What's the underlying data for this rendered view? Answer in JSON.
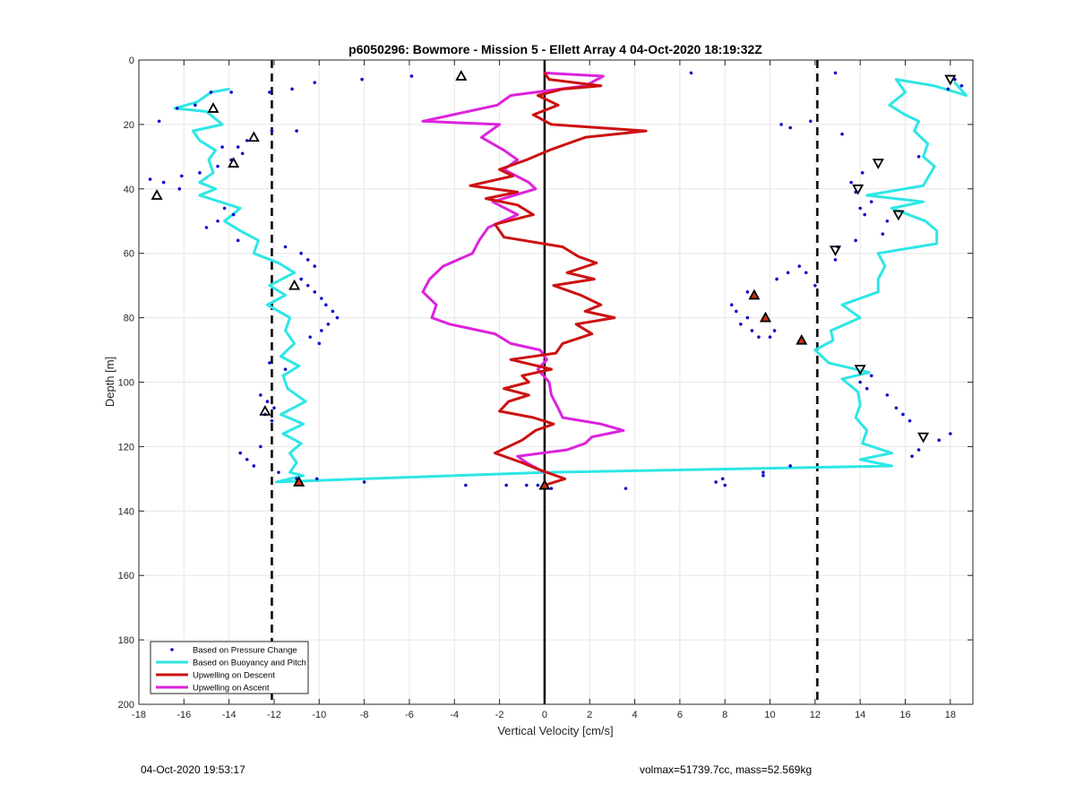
{
  "footer": {
    "left": "04-Oct-2020 19:53:17",
    "right": "volmax=51739.7cc, mass=52.569kg"
  },
  "chart_data": {
    "type": "line",
    "title": "p6050296: Bowmore - Mission 5 - Ellett Array 4 04-Oct-2020 18:19:32Z",
    "xlabel": "Vertical Velocity [cm/s]",
    "ylabel": "Depth [m]",
    "xlim": [
      -18,
      19
    ],
    "ylim": [
      0,
      200
    ],
    "y_reversed": true,
    "grid": true,
    "legend_position": "bottom-left",
    "xticks": [
      "-18",
      "-16",
      "-14",
      "-12",
      "-10",
      "-8",
      "-6",
      "-4",
      "-2",
      "0",
      "2",
      "4",
      "6",
      "8",
      "10",
      "12",
      "14",
      "16",
      "18"
    ],
    "yticks": [
      "0",
      "20",
      "40",
      "60",
      "80",
      "100",
      "120",
      "140",
      "160",
      "180",
      "200"
    ],
    "reference_lines": [
      {
        "x": -12.1,
        "style": "dashed",
        "color": "#000000"
      },
      {
        "x": 12.1,
        "style": "dashed",
        "color": "#000000"
      },
      {
        "x": 0,
        "style": "solid",
        "color": "#000000"
      }
    ],
    "series": [
      {
        "name": "Based on Pressure Change",
        "kind": "points",
        "color": "#1010c8",
        "points": [
          [
            -14.8,
            10
          ],
          [
            -15.5,
            14
          ],
          [
            -16.3,
            15
          ],
          [
            -17.1,
            19
          ],
          [
            -13.9,
            10
          ],
          [
            -12.2,
            10
          ],
          [
            -11.2,
            9
          ],
          [
            -10.2,
            7
          ],
          [
            -8.1,
            6
          ],
          [
            -5.9,
            5
          ],
          [
            6.5,
            4
          ],
          [
            12.9,
            4
          ],
          [
            -13.6,
            27
          ],
          [
            -13.4,
            29
          ],
          [
            -13.9,
            31
          ],
          [
            -14.5,
            33
          ],
          [
            -15.3,
            35
          ],
          [
            -16.1,
            36
          ],
          [
            -16.9,
            38
          ],
          [
            -17.5,
            37
          ],
          [
            -16.2,
            40
          ],
          [
            -14.3,
            27
          ],
          [
            -13.2,
            25
          ],
          [
            -12.1,
            22
          ],
          [
            -11.0,
            22
          ],
          [
            -14.2,
            46
          ],
          [
            -13.8,
            48
          ],
          [
            -14.5,
            50
          ],
          [
            -15.0,
            52
          ],
          [
            -13.6,
            56
          ],
          [
            -11.5,
            58
          ],
          [
            -10.8,
            60
          ],
          [
            -10.5,
            62
          ],
          [
            -10.2,
            64
          ],
          [
            -10.8,
            68
          ],
          [
            -10.5,
            70
          ],
          [
            -10.2,
            72
          ],
          [
            -9.9,
            74
          ],
          [
            -9.7,
            76
          ],
          [
            -9.4,
            78
          ],
          [
            -9.2,
            80
          ],
          [
            -9.6,
            82
          ],
          [
            -9.9,
            84
          ],
          [
            -10.4,
            86
          ],
          [
            -10.0,
            88
          ],
          [
            -12.2,
            94
          ],
          [
            -11.5,
            96
          ],
          [
            -12.6,
            104
          ],
          [
            -12.3,
            106
          ],
          [
            -12.0,
            108
          ],
          [
            -12.4,
            110
          ],
          [
            -12.1,
            112
          ],
          [
            -12.6,
            120
          ],
          [
            -13.5,
            122
          ],
          [
            -13.2,
            124
          ],
          [
            -12.9,
            126
          ],
          [
            -11.8,
            128
          ],
          [
            -11.0,
            130
          ],
          [
            -10.1,
            130
          ],
          [
            -8.0,
            131
          ],
          [
            -3.5,
            132
          ],
          [
            -1.7,
            132
          ],
          [
            -0.8,
            132
          ],
          [
            -0.3,
            132
          ],
          [
            0.3,
            133
          ],
          [
            3.6,
            133
          ],
          [
            7.6,
            131
          ],
          [
            7.9,
            130
          ],
          [
            8.0,
            132
          ],
          [
            9.7,
            128
          ],
          [
            9.7,
            129
          ],
          [
            10.9,
            126
          ],
          [
            10.5,
            20
          ],
          [
            10.9,
            21
          ],
          [
            11.8,
            19
          ],
          [
            13.2,
            23
          ],
          [
            16.6,
            30
          ],
          [
            14.1,
            35
          ],
          [
            13.6,
            38
          ],
          [
            13.8,
            41
          ],
          [
            14.5,
            44
          ],
          [
            14.0,
            46
          ],
          [
            14.2,
            48
          ],
          [
            15.2,
            50
          ],
          [
            15.0,
            54
          ],
          [
            13.8,
            56
          ],
          [
            13.0,
            58
          ],
          [
            12.9,
            62
          ],
          [
            8.3,
            76
          ],
          [
            9.0,
            72
          ],
          [
            10.3,
            68
          ],
          [
            10.8,
            66
          ],
          [
            11.3,
            64
          ],
          [
            11.6,
            66
          ],
          [
            12.0,
            70
          ],
          [
            8.5,
            78
          ],
          [
            9.0,
            80
          ],
          [
            8.7,
            82
          ],
          [
            9.2,
            84
          ],
          [
            9.5,
            86
          ],
          [
            10.0,
            86
          ],
          [
            10.2,
            84
          ],
          [
            14.5,
            98
          ],
          [
            14.0,
            100
          ],
          [
            14.3,
            102
          ],
          [
            15.2,
            104
          ],
          [
            15.6,
            108
          ],
          [
            15.9,
            110
          ],
          [
            16.2,
            112
          ],
          [
            18.0,
            116
          ],
          [
            17.5,
            118
          ],
          [
            16.6,
            121
          ],
          [
            16.3,
            123
          ],
          [
            18.2,
            6
          ],
          [
            18.5,
            8
          ],
          [
            17.9,
            9
          ]
        ]
      },
      {
        "name": "Based on Buoyancy and Pitch",
        "kind": "line",
        "color": "#2ee6e6",
        "points": [
          [
            -14.0,
            9
          ],
          [
            -14.8,
            10
          ],
          [
            -15.4,
            13
          ],
          [
            -16.4,
            15
          ],
          [
            -15.0,
            16
          ],
          [
            -14.3,
            20
          ],
          [
            -15.6,
            22
          ],
          [
            -15.3,
            25
          ],
          [
            -14.6,
            28
          ],
          [
            -14.9,
            31
          ],
          [
            -14.7,
            35
          ],
          [
            -15.3,
            38
          ],
          [
            -14.6,
            40
          ],
          [
            -15.3,
            42
          ],
          [
            -13.5,
            46
          ],
          [
            -14.2,
            50
          ],
          [
            -13.5,
            53
          ],
          [
            -12.7,
            56
          ],
          [
            -12.9,
            60
          ],
          [
            -11.8,
            63
          ],
          [
            -11.1,
            66
          ],
          [
            -12.2,
            70
          ],
          [
            -11.5,
            73
          ],
          [
            -12.3,
            76
          ],
          [
            -11.3,
            80
          ],
          [
            -11.5,
            84
          ],
          [
            -11.1,
            88
          ],
          [
            -11.7,
            92
          ],
          [
            -10.9,
            95
          ],
          [
            -11.6,
            98
          ],
          [
            -11.4,
            102
          ],
          [
            -10.6,
            106
          ],
          [
            -11.7,
            110
          ],
          [
            -10.7,
            113
          ],
          [
            -11.6,
            116
          ],
          [
            -10.8,
            119
          ],
          [
            -11.3,
            122
          ],
          [
            -11.0,
            125
          ],
          [
            -11.3,
            128
          ],
          [
            -10.7,
            129
          ],
          [
            -11.9,
            131
          ],
          [
            0,
            128
          ],
          [
            15.4,
            126
          ],
          [
            14.0,
            124
          ],
          [
            15.4,
            122
          ],
          [
            14.1,
            119
          ],
          [
            14.3,
            115
          ],
          [
            13.8,
            111
          ],
          [
            14.0,
            107
          ],
          [
            13.9,
            103
          ],
          [
            13.2,
            99
          ],
          [
            14.4,
            97
          ],
          [
            12.6,
            94
          ],
          [
            12.0,
            90
          ],
          [
            12.8,
            87
          ],
          [
            12.7,
            84
          ],
          [
            14.0,
            80
          ],
          [
            13.2,
            76
          ],
          [
            14.8,
            72
          ],
          [
            14.8,
            68
          ],
          [
            15.1,
            64
          ],
          [
            14.8,
            60
          ],
          [
            17.4,
            57
          ],
          [
            17.4,
            53
          ],
          [
            16.9,
            50
          ],
          [
            15.4,
            46
          ],
          [
            16.8,
            44
          ],
          [
            14.3,
            42
          ],
          [
            16.8,
            39
          ],
          [
            17.3,
            33
          ],
          [
            16.8,
            30
          ],
          [
            17.0,
            26
          ],
          [
            16.4,
            22
          ],
          [
            16.6,
            19
          ],
          [
            16.0,
            17
          ],
          [
            15.3,
            14
          ],
          [
            16.0,
            10
          ],
          [
            15.6,
            6
          ],
          [
            17.3,
            8
          ],
          [
            18.7,
            11
          ],
          [
            18.2,
            7
          ]
        ]
      },
      {
        "name": "Upwelling on Descent",
        "kind": "line",
        "color": "#cc1111",
        "points": [
          [
            0,
            4
          ],
          [
            0.2,
            6
          ],
          [
            2.5,
            8
          ],
          [
            0.8,
            9
          ],
          [
            -0.3,
            11
          ],
          [
            0.6,
            14
          ],
          [
            -0.5,
            17
          ],
          [
            0.3,
            20
          ],
          [
            4.5,
            22
          ],
          [
            1.8,
            24
          ],
          [
            0.2,
            28
          ],
          [
            -0.8,
            31
          ],
          [
            -2.0,
            34
          ],
          [
            -1.4,
            36
          ],
          [
            -3.3,
            39
          ],
          [
            -1.2,
            41
          ],
          [
            -2.6,
            43
          ],
          [
            -1.2,
            45
          ],
          [
            -0.5,
            48
          ],
          [
            -2.2,
            51
          ],
          [
            -1.8,
            55
          ],
          [
            0.8,
            58
          ],
          [
            1.5,
            61
          ],
          [
            2.3,
            63
          ],
          [
            1.0,
            66
          ],
          [
            2.2,
            68
          ],
          [
            0.4,
            70
          ],
          [
            1.6,
            73
          ],
          [
            2.5,
            76
          ],
          [
            1.8,
            78
          ],
          [
            3.1,
            80
          ],
          [
            1.4,
            82
          ],
          [
            2.1,
            85
          ],
          [
            0.8,
            88
          ],
          [
            0.5,
            91
          ],
          [
            -1.5,
            93
          ],
          [
            0.3,
            96
          ],
          [
            -1.0,
            98
          ],
          [
            -0.7,
            100
          ],
          [
            -1.8,
            102
          ],
          [
            -0.7,
            104
          ],
          [
            -1.6,
            106
          ],
          [
            -2.0,
            109
          ],
          [
            -0.5,
            111
          ],
          [
            0.4,
            113
          ],
          [
            -0.4,
            115
          ],
          [
            -1.0,
            118
          ],
          [
            -2.2,
            122
          ],
          [
            -1.0,
            125
          ],
          [
            -0.3,
            127
          ],
          [
            0.9,
            130
          ],
          [
            0,
            132
          ]
        ]
      },
      {
        "name": "Upwelling on Ascent",
        "kind": "line",
        "color": "#dd22dd",
        "points": [
          [
            0,
            4
          ],
          [
            2.6,
            5
          ],
          [
            1.8,
            8
          ],
          [
            -1.5,
            11
          ],
          [
            -2.1,
            14
          ],
          [
            -5.4,
            19
          ],
          [
            -2.0,
            20
          ],
          [
            -2.8,
            24
          ],
          [
            -1.8,
            28
          ],
          [
            -1.2,
            31
          ],
          [
            -1.8,
            34
          ],
          [
            -0.7,
            38
          ],
          [
            -0.4,
            40
          ],
          [
            -2.3,
            44
          ],
          [
            -1.2,
            48
          ],
          [
            -2.5,
            52
          ],
          [
            -2.9,
            56
          ],
          [
            -3.2,
            60
          ],
          [
            -4.5,
            64
          ],
          [
            -5.1,
            68
          ],
          [
            -5.4,
            72
          ],
          [
            -4.8,
            76
          ],
          [
            -5.0,
            80
          ],
          [
            -4.2,
            82
          ],
          [
            -2.2,
            85
          ],
          [
            -1.5,
            88
          ],
          [
            -0.2,
            90
          ],
          [
            0.1,
            93
          ],
          [
            -0.3,
            96
          ],
          [
            0.2,
            100
          ],
          [
            0.3,
            104
          ],
          [
            0.6,
            108
          ],
          [
            0.8,
            111
          ],
          [
            2.5,
            113
          ],
          [
            3.5,
            115
          ],
          [
            2.1,
            117
          ],
          [
            1.8,
            119
          ],
          [
            1.0,
            121
          ],
          [
            -1.2,
            123
          ],
          [
            -0.8,
            125
          ],
          [
            0,
            128
          ]
        ]
      }
    ],
    "markers": {
      "up_triangles": [
        [
          -14.7,
          15
        ],
        [
          -12.9,
          24
        ],
        [
          -13.8,
          32
        ],
        [
          -3.7,
          5
        ],
        [
          -17.2,
          42
        ],
        [
          -11.1,
          70
        ],
        [
          -12.4,
          109
        ],
        [
          -10.9,
          131
        ],
        [
          0,
          132
        ],
        [
          9.3,
          73
        ],
        [
          9.8,
          80
        ],
        [
          11.4,
          87
        ]
      ],
      "down_triangles": [
        [
          18.0,
          6
        ],
        [
          14.8,
          32
        ],
        [
          13.9,
          40
        ],
        [
          15.7,
          48
        ],
        [
          12.9,
          59
        ],
        [
          14.0,
          96
        ],
        [
          16.8,
          117
        ]
      ],
      "filled_up_triangles": [
        [
          -10.9,
          131
        ],
        [
          0,
          132
        ],
        [
          9.3,
          73
        ],
        [
          9.8,
          80
        ],
        [
          11.4,
          87
        ]
      ]
    }
  }
}
